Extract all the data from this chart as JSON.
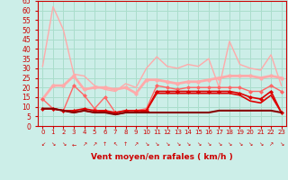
{
  "x": [
    0,
    1,
    2,
    3,
    4,
    5,
    6,
    7,
    8,
    9,
    10,
    11,
    12,
    13,
    14,
    15,
    16,
    17,
    18,
    19,
    20,
    21,
    22,
    23
  ],
  "series": [
    {
      "label": "light_pink_no_marker",
      "y": [
        31,
        62,
        50,
        27,
        26,
        21,
        19,
        18,
        22,
        20,
        30,
        36,
        31,
        30,
        32,
        31,
        35,
        20,
        44,
        32,
        30,
        29,
        37,
        21
      ],
      "color": "#ffaaaa",
      "lw": 1.0,
      "marker": null,
      "zorder": 2
    },
    {
      "label": "medium_pink_with_dots",
      "y": [
        14,
        21,
        21,
        26,
        19,
        20,
        20,
        19,
        20,
        17,
        24,
        24,
        23,
        22,
        23,
        23,
        24,
        25,
        26,
        26,
        26,
        25,
        26,
        25
      ],
      "color": "#ffaaaa",
      "lw": 2.0,
      "marker": "o",
      "ms": 2.5,
      "zorder": 3
    },
    {
      "label": "pink_jagged_with_dots",
      "y": [
        14,
        9,
        8,
        21,
        16,
        9,
        15,
        7,
        8,
        8,
        9,
        21,
        20,
        19,
        20,
        20,
        20,
        20,
        20,
        20,
        18,
        18,
        21,
        18
      ],
      "color": "#ff6666",
      "lw": 1.0,
      "marker": "D",
      "ms": 2,
      "zorder": 4
    },
    {
      "label": "dark_red_with_dots_upper",
      "y": [
        9,
        9,
        8,
        8,
        9,
        8,
        8,
        7,
        8,
        8,
        8,
        18,
        18,
        18,
        18,
        18,
        18,
        18,
        18,
        17,
        15,
        14,
        18,
        7
      ],
      "color": "#dd0000",
      "lw": 1.2,
      "marker": "D",
      "ms": 2,
      "zorder": 5
    },
    {
      "label": "dark_red_lower",
      "y": [
        9,
        9,
        8,
        7,
        8,
        7,
        8,
        6,
        7,
        7,
        8,
        17,
        17,
        17,
        17,
        17,
        17,
        17,
        17,
        16,
        13,
        12,
        16,
        7
      ],
      "color": "#dd0000",
      "lw": 1.2,
      "marker": null,
      "zorder": 5
    },
    {
      "label": "very_dark_red_flat",
      "y": [
        9,
        9,
        8,
        7,
        8,
        7,
        7,
        6,
        7,
        7,
        7,
        7,
        7,
        7,
        7,
        7,
        7,
        8,
        8,
        8,
        8,
        8,
        8,
        7
      ],
      "color": "#880000",
      "lw": 1.5,
      "marker": null,
      "zorder": 6
    }
  ],
  "ylim": [
    0,
    65
  ],
  "yticks": [
    0,
    5,
    10,
    15,
    20,
    25,
    30,
    35,
    40,
    45,
    50,
    55,
    60,
    65
  ],
  "xticks": [
    0,
    1,
    2,
    3,
    4,
    5,
    6,
    7,
    8,
    9,
    10,
    11,
    12,
    13,
    14,
    15,
    16,
    17,
    18,
    19,
    20,
    21,
    22,
    23
  ],
  "xlabel": "Vent moyen/en rafales ( km/h )",
  "bg_color": "#cceee8",
  "grid_color": "#aaddcc",
  "axis_color": "#cc0000",
  "label_color": "#cc0000",
  "wind_arrows": [
    "↙",
    "↘",
    "↘",
    "←",
    "↗",
    "↗",
    "↑",
    "↖",
    "↑",
    "↗",
    "↘",
    "↘",
    "↘",
    "↘",
    "↘",
    "↘",
    "↘",
    "↘",
    "↘",
    "↘",
    "↘",
    "↘",
    "↗",
    "↘"
  ]
}
